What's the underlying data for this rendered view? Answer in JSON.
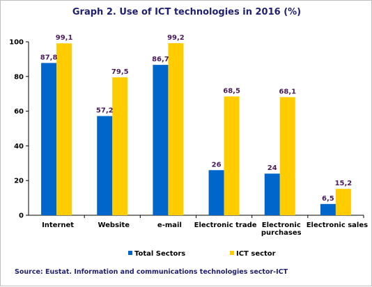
{
  "chart_data": {
    "type": "bar",
    "title": "Graph 2. Use of ICT technologies in 2016 (%)",
    "categories": [
      [
        "Internet"
      ],
      [
        "Website"
      ],
      [
        "e-mail"
      ],
      [
        "Electronic trade"
      ],
      [
        "Electronic",
        "purchases"
      ],
      [
        "Electronic sales"
      ]
    ],
    "series": [
      {
        "name": "Total Sectors",
        "color": "#0066cc",
        "values": [
          87.8,
          57.2,
          86.7,
          26,
          24,
          6.5
        ],
        "labels": [
          "87,8",
          "57,2",
          "86,7",
          "26",
          "24",
          "6,5"
        ]
      },
      {
        "name": "ICT sector",
        "color": "#ffcc00",
        "values": [
          99.1,
          79.5,
          99.2,
          68.5,
          68.1,
          15.2
        ],
        "labels": [
          "99,1",
          "79,5",
          "99,2",
          "68,5",
          "68,1",
          "15,2"
        ]
      }
    ],
    "ylim": [
      0,
      100
    ],
    "yticks": [
      "0",
      "20",
      "40",
      "60",
      "80",
      "100"
    ],
    "grid": false,
    "legend": "bottom-center",
    "source": "Source: Eustat. Information and communications technologies sector-ICT"
  }
}
